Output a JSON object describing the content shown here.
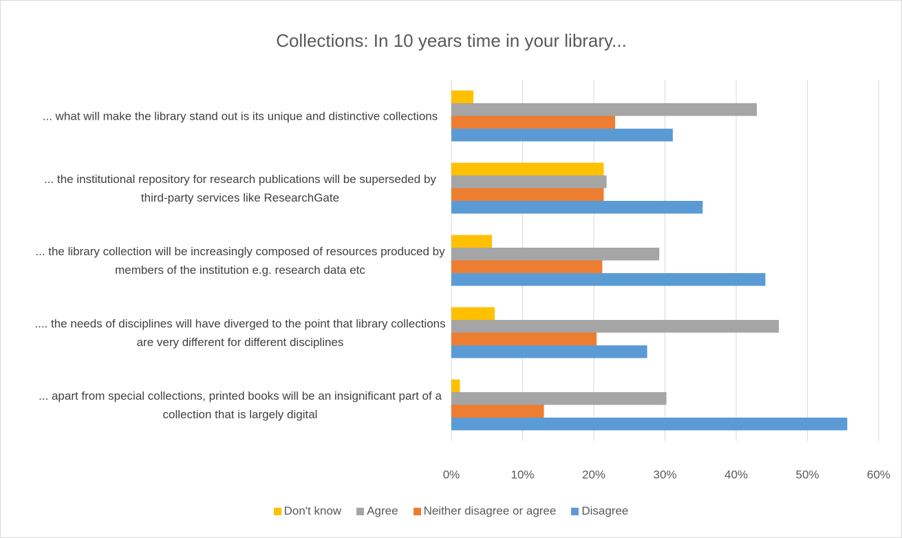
{
  "chart_data": {
    "type": "hbar",
    "title": "Collections: In 10 years time in your library...",
    "categories": [
      "... what will make the library stand out is its unique and distinctive collections",
      "... the institutional repository for research publications will be superseded by third-party services like ResearchGate",
      "... the library collection will be increasingly composed of resources produced by members of the institution e.g. research data etc",
      ".... the needs of disciplines will have diverged to the point that library collections are very different for different disciplines",
      "... apart from special collections, printed books will be an insignificant part of a collection that is largely digital"
    ],
    "series": [
      {
        "name": "Don't know",
        "color": "#ffc000",
        "values": [
          3.1,
          21.4,
          5.7,
          6.1,
          1.2
        ]
      },
      {
        "name": "Agree",
        "color": "#a5a5a5",
        "values": [
          42.9,
          21.8,
          29.2,
          46.0,
          30.2
        ]
      },
      {
        "name": "Neither disagree or agree",
        "color": "#ed7d31",
        "values": [
          23.0,
          21.4,
          21.2,
          20.4,
          13.0
        ]
      },
      {
        "name": "Disagree",
        "color": "#5b9bd5",
        "values": [
          31.1,
          35.3,
          44.1,
          27.5,
          55.6
        ]
      }
    ],
    "xlim": [
      0,
      60
    ],
    "xticks": [
      {
        "value": 0,
        "label": "0%"
      },
      {
        "value": 10,
        "label": "10%"
      },
      {
        "value": 20,
        "label": "20%"
      },
      {
        "value": 30,
        "label": "30%"
      },
      {
        "value": 40,
        "label": "40%"
      },
      {
        "value": 50,
        "label": "50%"
      },
      {
        "value": 60,
        "label": "60%"
      }
    ],
    "grid": true,
    "legend": "bottom"
  }
}
